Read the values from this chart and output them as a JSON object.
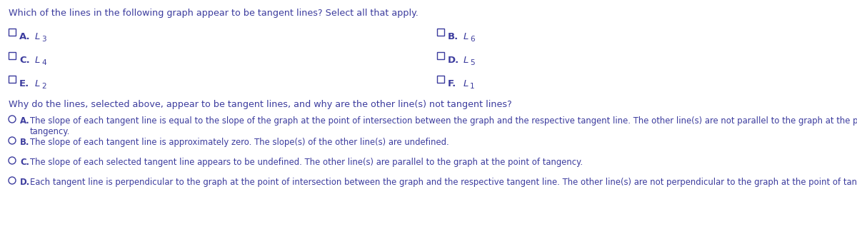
{
  "title": "Which of the lines in the following graph appear to be tangent lines? Select all that apply.",
  "q2_title": "Why do the lines, selected above, appear to be tangent lines, and why are the other line(s) not tangent lines?",
  "options_left": [
    [
      "A.",
      "L",
      "3"
    ],
    [
      "C.",
      "L",
      "4"
    ],
    [
      "E.",
      "L",
      "2"
    ]
  ],
  "options_right": [
    [
      "B.",
      "L",
      "6"
    ],
    [
      "D.",
      "L",
      "5"
    ],
    [
      "F.",
      "L",
      "1"
    ]
  ],
  "answer_letters": [
    "A.",
    "B.",
    "C.",
    "D."
  ],
  "answer_texts": [
    "The slope of each tangent line is equal to the slope of the graph at the point of intersection between the graph and the respective tangent line. The other line(s) are not parallel to the graph at the point of\ntangency.",
    "The slope of each tangent line is approximately zero. The slope(s) of the other line(s) are undefined.",
    "The slope of each selected tangent line appears to be undefined. The other line(s) are parallel to the graph at the point of tangency.",
    "Each tangent line is perpendicular to the graph at the point of intersection between the graph and the respective tangent line. The other line(s) are not perpendicular to the graph at the point of tangency."
  ],
  "text_color": "#3c3c9e",
  "bg_color": "#ffffff",
  "fs_title": 9.2,
  "fs_option_label": 9.5,
  "fs_option_L": 9.5,
  "fs_option_sub": 7.5,
  "fs_ans": 8.4,
  "fs_ans_letter": 8.4
}
